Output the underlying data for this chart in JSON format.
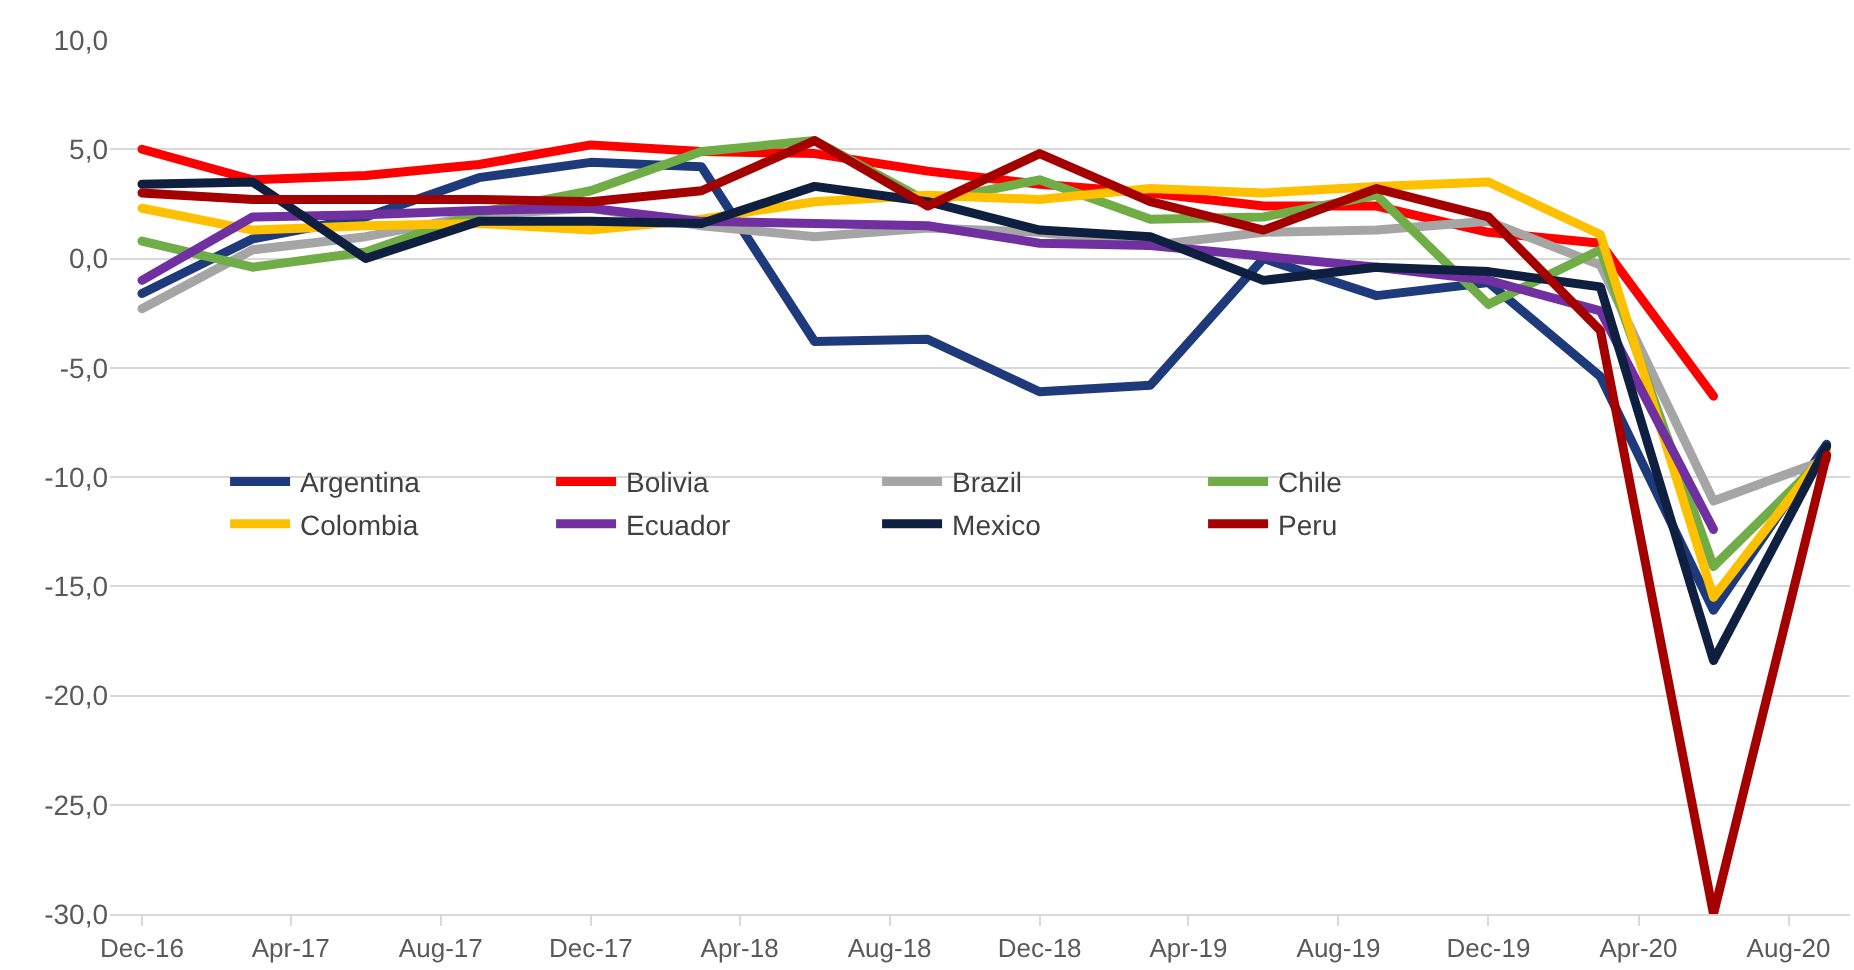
{
  "chart_data": {
    "type": "line",
    "x": [
      "2016-12",
      "2017-03",
      "2017-06",
      "2017-09",
      "2017-12",
      "2018-03",
      "2018-06",
      "2018-09",
      "2018-12",
      "2019-03",
      "2019-06",
      "2019-09",
      "2019-12",
      "2020-03",
      "2020-06",
      "2020-09"
    ],
    "series": [
      {
        "name": "Argentina",
        "color": "#1f3a7a",
        "values": [
          -1.6,
          0.9,
          1.9,
          3.7,
          4.4,
          4.2,
          -3.8,
          -3.7,
          -6.1,
          -5.8,
          0.0,
          -1.7,
          -1.1,
          -5.4,
          -16.1,
          -8.5
        ]
      },
      {
        "name": "Bolivia",
        "color": "#ff0000",
        "values": [
          5.0,
          3.6,
          3.8,
          4.3,
          5.2,
          4.9,
          4.8,
          4.0,
          3.4,
          3.0,
          2.4,
          2.4,
          1.2,
          0.7,
          -6.3,
          null
        ]
      },
      {
        "name": "Brazil",
        "color": "#a5a5a5",
        "values": [
          -2.3,
          0.4,
          1.0,
          2.0,
          2.3,
          1.5,
          1.0,
          1.4,
          1.2,
          0.6,
          1.2,
          1.3,
          1.7,
          -0.3,
          -11.1,
          -9.2
        ]
      },
      {
        "name": "Chile",
        "color": "#70ad47",
        "values": [
          0.8,
          -0.4,
          0.3,
          2.1,
          3.1,
          4.9,
          5.4,
          2.6,
          3.6,
          1.8,
          1.9,
          2.9,
          -2.1,
          0.4,
          -14.1,
          -9.0
        ]
      },
      {
        "name": "Colombia",
        "color": "#ffc000",
        "values": [
          2.3,
          1.3,
          1.5,
          1.6,
          1.3,
          1.8,
          2.6,
          2.9,
          2.7,
          3.2,
          3.0,
          3.3,
          3.5,
          1.1,
          -15.5,
          -8.8
        ]
      },
      {
        "name": "Ecuador",
        "color": "#7030a0",
        "values": [
          -1.0,
          1.9,
          2.0,
          2.2,
          2.3,
          1.7,
          1.6,
          1.5,
          0.7,
          0.6,
          0.1,
          -0.4,
          -1.0,
          -2.4,
          -12.4,
          null
        ]
      },
      {
        "name": "Mexico",
        "color": "#0f1f3f",
        "values": [
          3.4,
          3.5,
          0.0,
          1.7,
          1.7,
          1.6,
          3.3,
          2.6,
          1.3,
          1.0,
          -1.0,
          -0.4,
          -0.6,
          -1.3,
          -18.4,
          -8.6
        ]
      },
      {
        "name": "Peru",
        "color": "#a50000",
        "values": [
          3.0,
          2.7,
          2.7,
          2.7,
          2.6,
          3.1,
          5.4,
          2.4,
          4.8,
          2.6,
          1.3,
          3.2,
          1.9,
          -3.3,
          -30.0,
          -9.0
        ]
      }
    ],
    "xlim": [
      "2016-11-05",
      "2020-09-20"
    ],
    "xticks": [
      {
        "value": "2016-12",
        "label": "Dec-16"
      },
      {
        "value": "2017-04",
        "label": "Apr-17"
      },
      {
        "value": "2017-08",
        "label": "Aug-17"
      },
      {
        "value": "2017-12",
        "label": "Dec-17"
      },
      {
        "value": "2018-04",
        "label": "Apr-18"
      },
      {
        "value": "2018-08",
        "label": "Aug-18"
      },
      {
        "value": "2018-12",
        "label": "Dec-18"
      },
      {
        "value": "2019-04",
        "label": "Apr-19"
      },
      {
        "value": "2019-08",
        "label": "Aug-19"
      },
      {
        "value": "2019-12",
        "label": "Dec-19"
      },
      {
        "value": "2020-04",
        "label": "Apr-20"
      },
      {
        "value": "2020-08",
        "label": "Aug-20"
      }
    ],
    "ylim": [
      -30,
      10
    ],
    "yticks": [
      {
        "value": 10,
        "label": "10,0"
      },
      {
        "value": 5,
        "label": "5,0"
      },
      {
        "value": 0,
        "label": "0,0"
      },
      {
        "value": -5,
        "label": "-5,0"
      },
      {
        "value": -10,
        "label": "-10,0"
      },
      {
        "value": -15,
        "label": "-15,0"
      },
      {
        "value": -20,
        "label": "-20,0"
      },
      {
        "value": -25,
        "label": "-25,0"
      },
      {
        "value": -30,
        "label": "-30,0"
      }
    ],
    "grid": "y",
    "legend": "left",
    "marker": "none",
    "line_style": "solid"
  }
}
